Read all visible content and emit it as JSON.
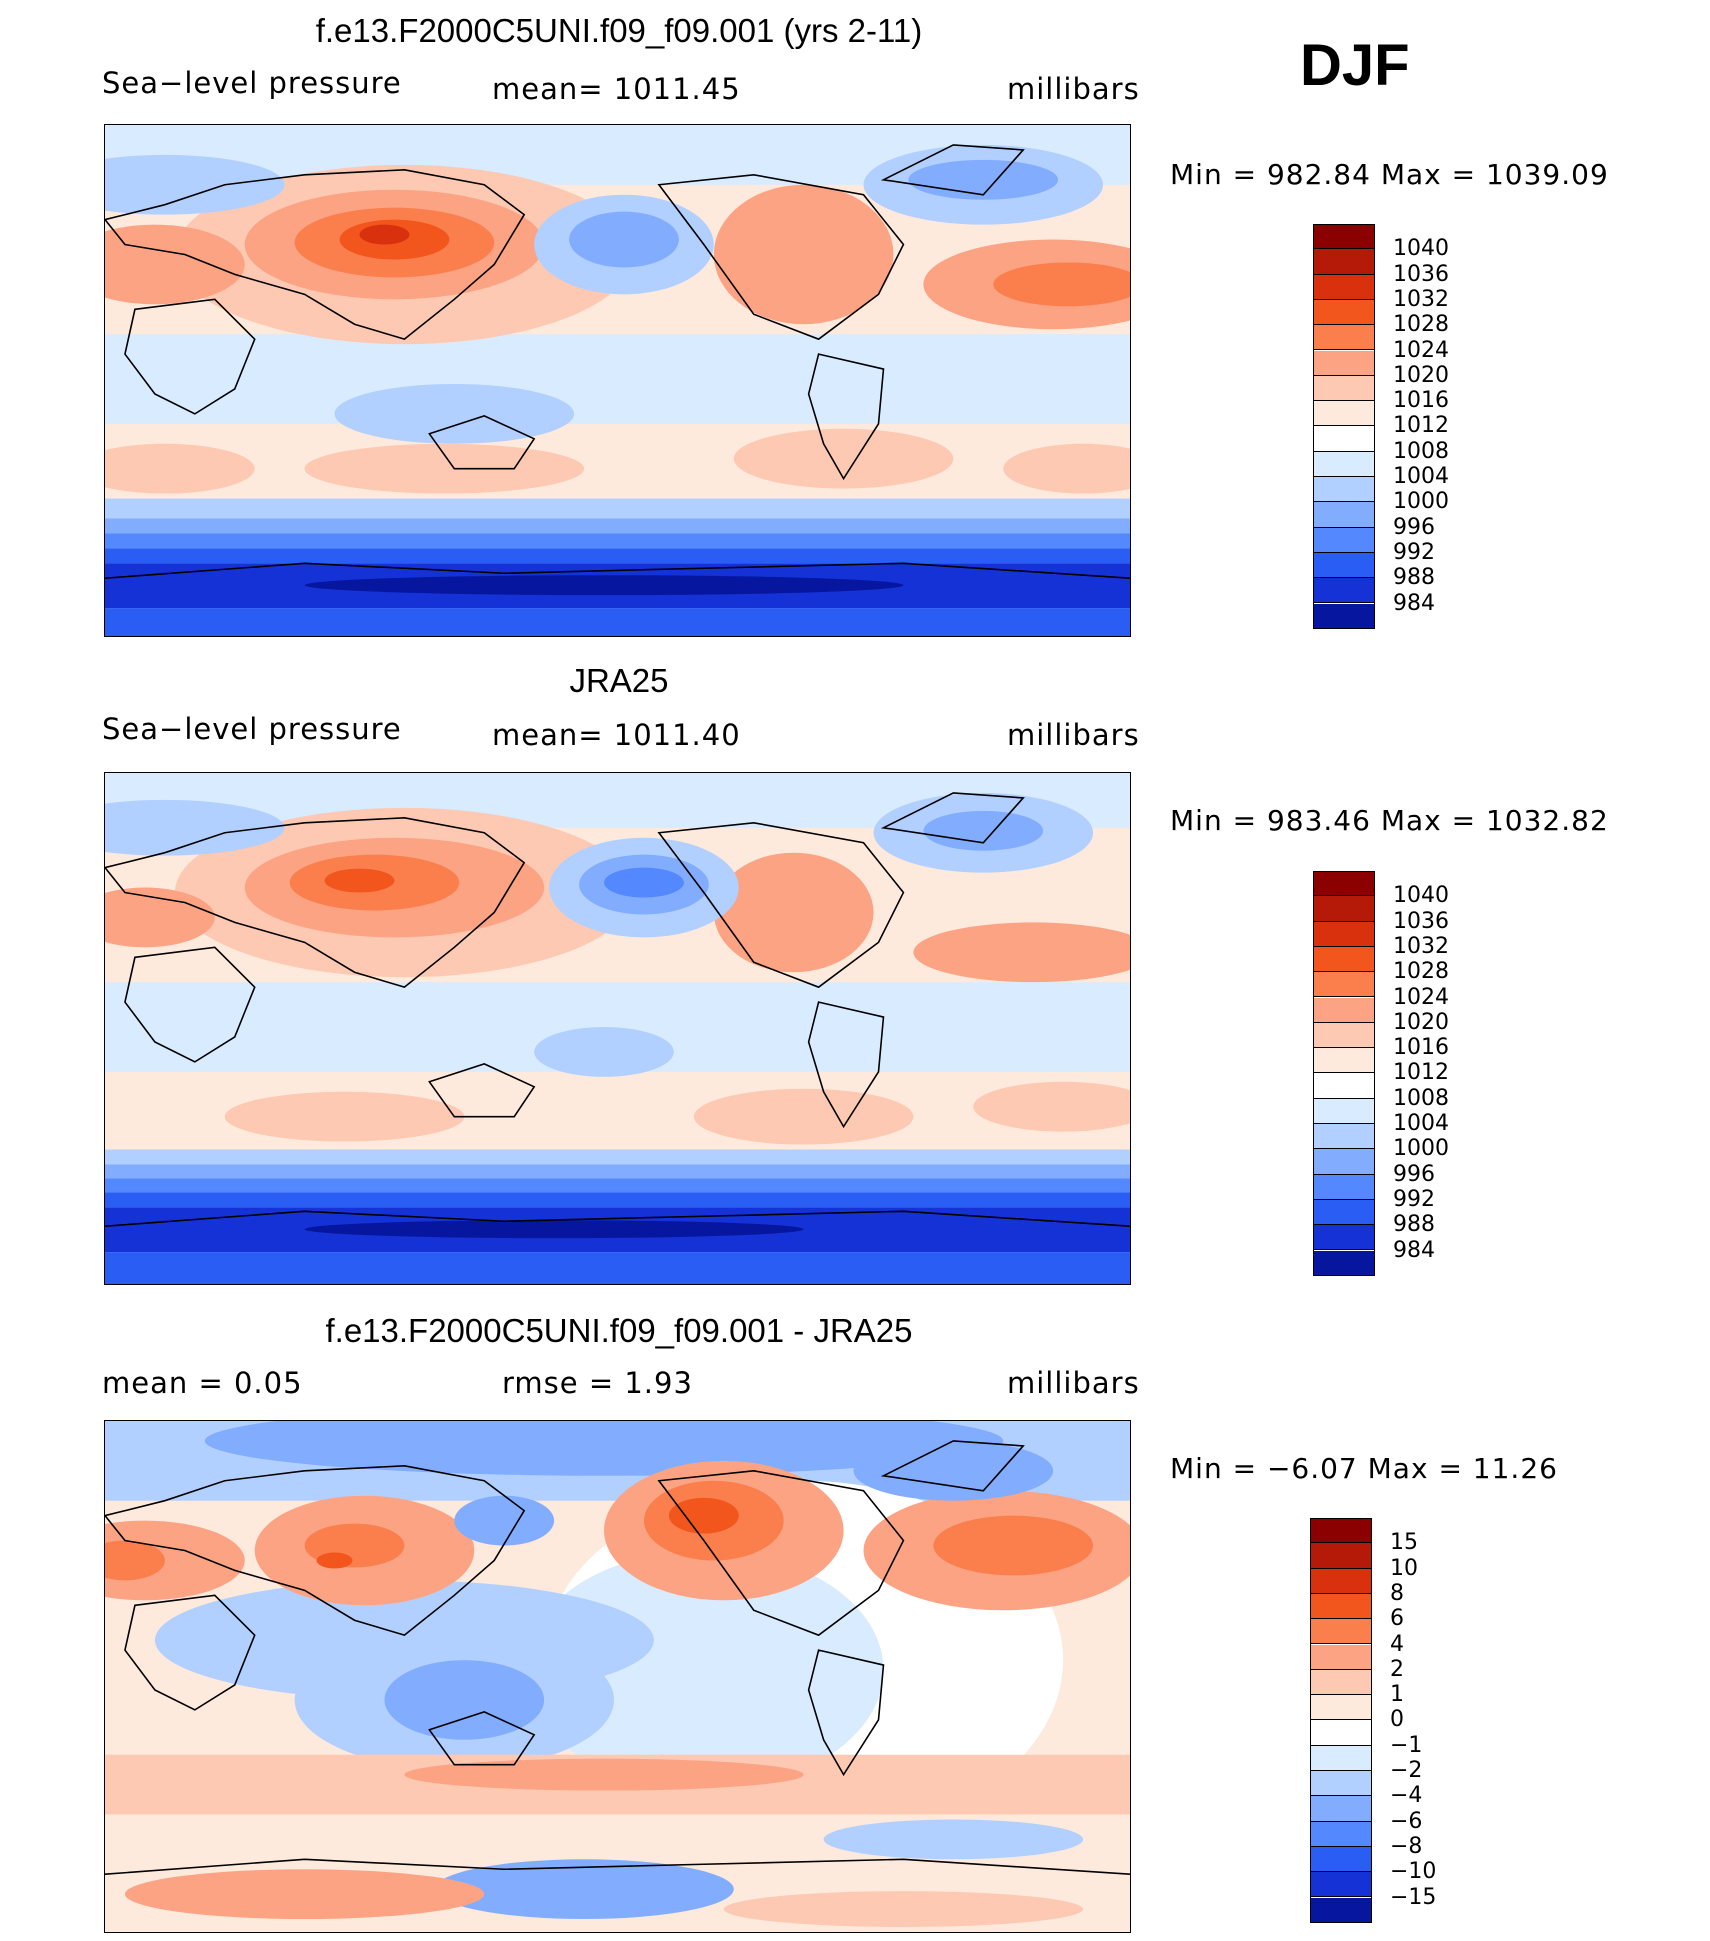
{
  "season": "DJF",
  "panels": [
    {
      "title": "f.e13.F2000C5UNI.f09_f09.001 (yrs 2-11)",
      "left_label": "Sea−level pressure",
      "center_label": "mean=  1011.45",
      "right_label": "millibars",
      "minmax": "Min  =  982.84  Max  =  1039.09",
      "colorbar": {
        "labels": [
          "1040",
          "1036",
          "1032",
          "1028",
          "1024",
          "1020",
          "1016",
          "1012",
          "1008",
          "1004",
          "1000",
          "996",
          "992",
          "988",
          "984"
        ],
        "colors": [
          "#8b0000",
          "#b41a07",
          "#d9300e",
          "#f2561c",
          "#fb7f4d",
          "#fca384",
          "#fdc9b2",
          "#fee9dd",
          "#ffffff",
          "#d9ebff",
          "#b1d0ff",
          "#82adff",
          "#5488ff",
          "#2a5df3",
          "#1432d6",
          "#06169f"
        ]
      }
    },
    {
      "title": "JRA25",
      "left_label": "Sea−level pressure",
      "center_label": "mean=  1011.40",
      "right_label": "millibars",
      "minmax": "Min  =  983.46  Max  =  1032.82",
      "colorbar": {
        "labels": [
          "1040",
          "1036",
          "1032",
          "1028",
          "1024",
          "1020",
          "1016",
          "1012",
          "1008",
          "1004",
          "1000",
          "996",
          "992",
          "988",
          "984"
        ],
        "colors": [
          "#8b0000",
          "#b41a07",
          "#d9300e",
          "#f2561c",
          "#fb7f4d",
          "#fca384",
          "#fdc9b2",
          "#fee9dd",
          "#ffffff",
          "#d9ebff",
          "#b1d0ff",
          "#82adff",
          "#5488ff",
          "#2a5df3",
          "#1432d6",
          "#06169f"
        ]
      }
    },
    {
      "title": "f.e13.F2000C5UNI.f09_f09.001 - JRA25",
      "left_label": "mean  =     0.05",
      "center_label": "rmse  =     1.93",
      "right_label": "millibars",
      "minmax": "Min  =   −6.07  Max  =    11.26",
      "colorbar": {
        "labels": [
          "15",
          "10",
          "8",
          "6",
          "4",
          "2",
          "1",
          "0",
          "−1",
          "−2",
          "−4",
          "−6",
          "−8",
          "−10",
          "−15"
        ],
        "colors": [
          "#8b0000",
          "#b41a07",
          "#d9300e",
          "#f2561c",
          "#fb7f4d",
          "#fca384",
          "#fdc9b2",
          "#fee9dd",
          "#ffffff",
          "#d9ebff",
          "#b1d0ff",
          "#82adff",
          "#5488ff",
          "#2a5df3",
          "#1432d6",
          "#06169f"
        ]
      }
    }
  ]
}
